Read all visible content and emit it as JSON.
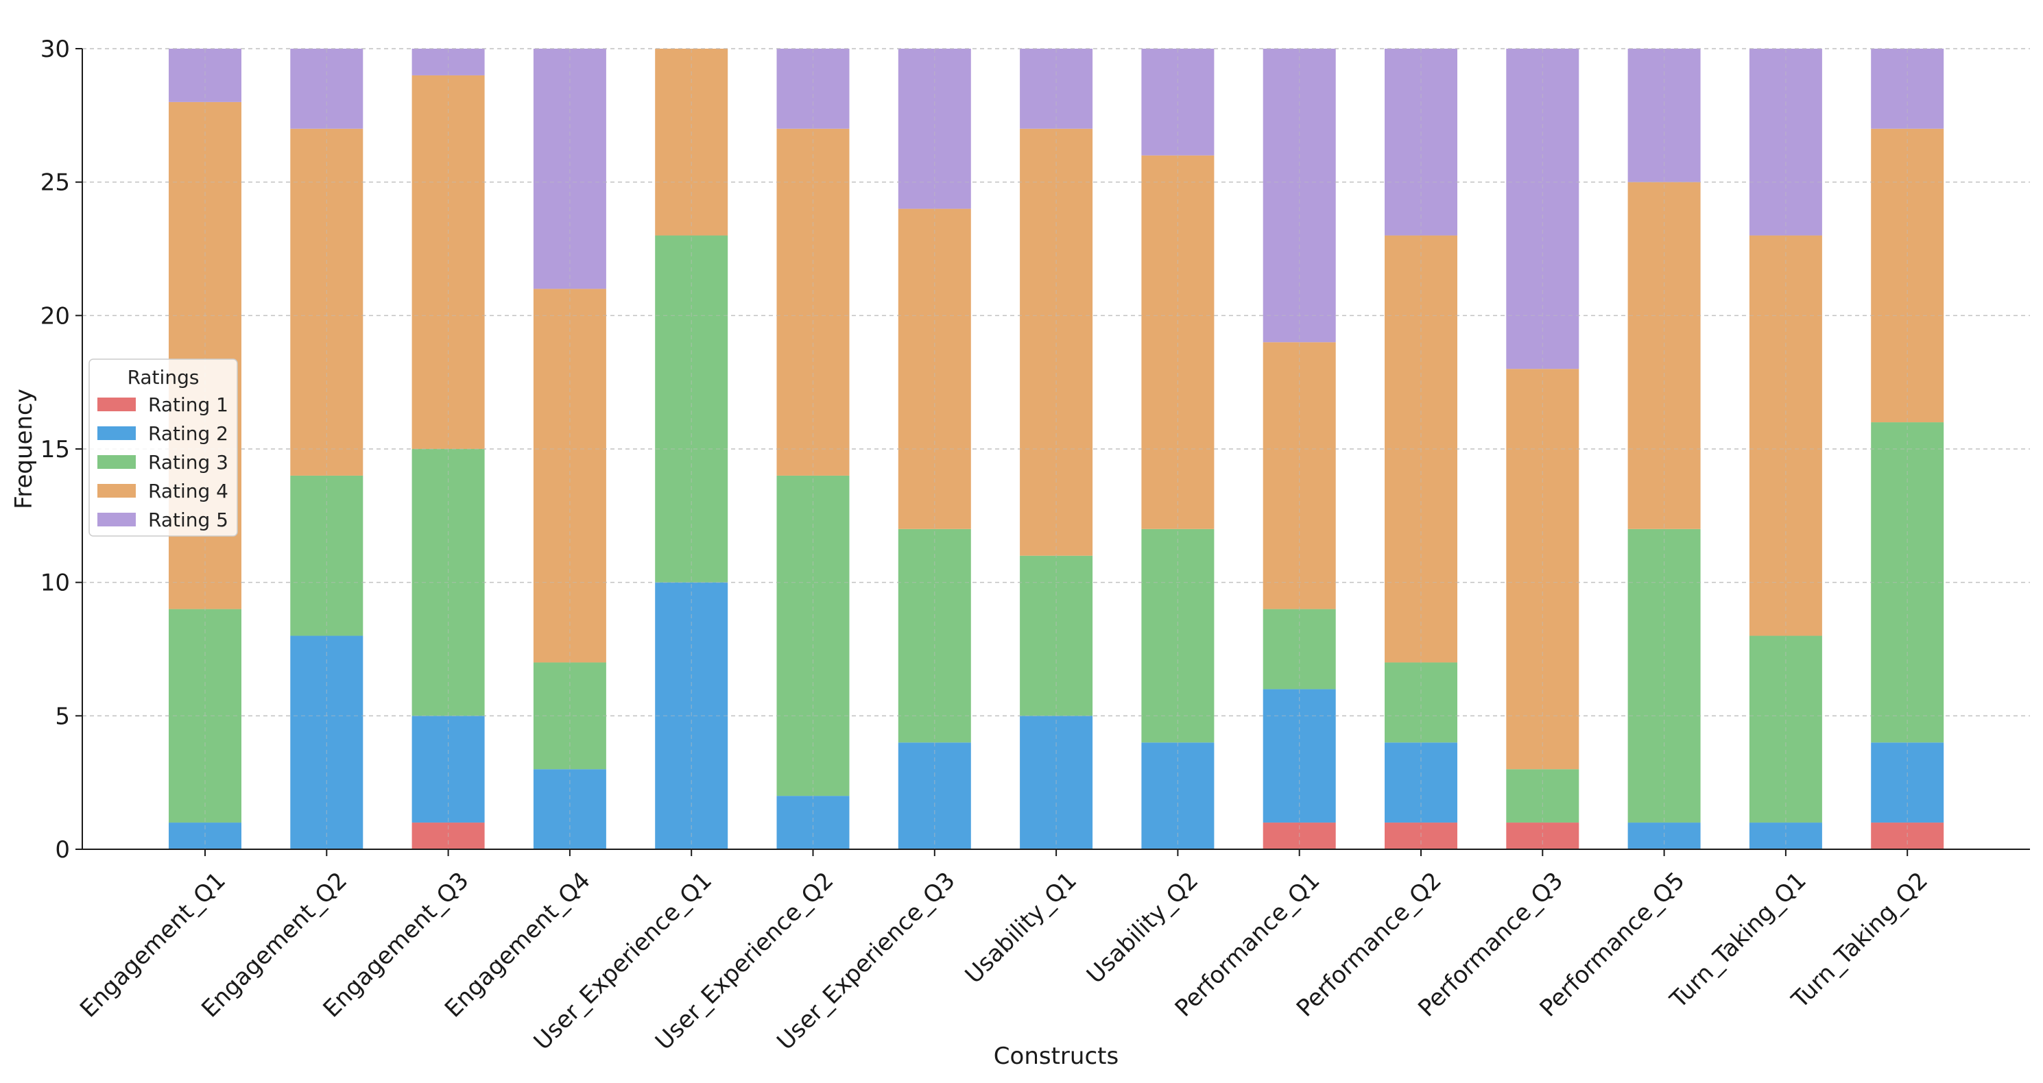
{
  "chart_data": {
    "type": "bar",
    "stacked": true,
    "title": "",
    "xlabel": "Constructs",
    "ylabel": "Frequency",
    "ylim": [
      0,
      30
    ],
    "yticks": [
      0,
      5,
      10,
      15,
      20,
      25,
      30
    ],
    "grid": true,
    "legend": {
      "title": "Ratings",
      "placement": "center-left"
    },
    "categories": [
      "Engagement_Q1",
      "Engagement_Q2",
      "Engagement_Q3",
      "Engagement_Q4",
      "User_Experience_Q1",
      "User_Experience_Q2",
      "User_Experience_Q3",
      "Usability_Q1",
      "Usability_Q2",
      "Performance_Q1",
      "Performance_Q2",
      "Performance_Q3",
      "Performance_Q5",
      "Turn_Taking_Q1",
      "Turn_Taking_Q2"
    ],
    "series": [
      {
        "name": "Rating 1",
        "color": "#e57373",
        "values": [
          0,
          0,
          1,
          0,
          0,
          0,
          0,
          0,
          0,
          1,
          1,
          1,
          0,
          0,
          1
        ]
      },
      {
        "name": "Rating 2",
        "color": "#4fa3e0",
        "values": [
          1,
          8,
          4,
          3,
          10,
          2,
          4,
          5,
          4,
          5,
          3,
          0,
          1,
          1,
          3
        ]
      },
      {
        "name": "Rating 3",
        "color": "#81c784",
        "values": [
          8,
          6,
          10,
          4,
          13,
          12,
          8,
          6,
          8,
          3,
          3,
          2,
          11,
          7,
          12
        ]
      },
      {
        "name": "Rating 4",
        "color": "#e6aa6e",
        "values": [
          19,
          13,
          14,
          14,
          7,
          13,
          12,
          16,
          14,
          10,
          16,
          15,
          13,
          15,
          11
        ]
      },
      {
        "name": "Rating 5",
        "color": "#b39ddb",
        "values": [
          2,
          3,
          1,
          9,
          0,
          3,
          6,
          3,
          4,
          11,
          7,
          12,
          5,
          7,
          3
        ]
      }
    ]
  }
}
